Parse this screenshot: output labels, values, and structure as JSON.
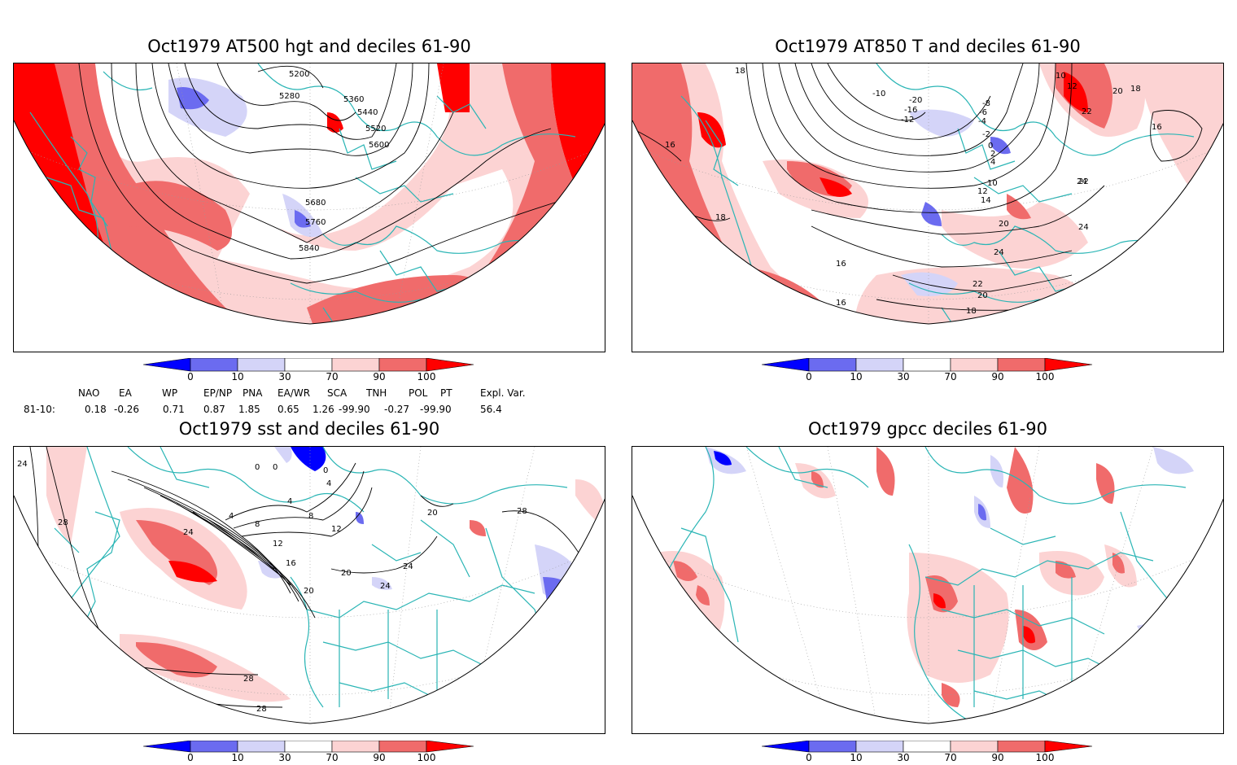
{
  "panels": [
    {
      "title": "Oct1979 AT500 hgt and deciles 61-90",
      "contour_labels": [
        "5200",
        "5280",
        "5360",
        "5440",
        "5520",
        "5600",
        "5680",
        "5760",
        "5840"
      ]
    },
    {
      "title": "Oct1979 AT850 T and deciles 61-90",
      "contour_labels": [
        "18",
        "16",
        "18",
        "-10",
        "-20",
        "-16",
        "-12",
        "-8",
        "-6",
        "-4",
        "-2",
        "0",
        "2",
        "4",
        "10",
        "12",
        "14",
        "20",
        "22",
        "24",
        "24",
        "22",
        "20",
        "18",
        "16",
        "16",
        "10",
        "12",
        "20",
        "22",
        "18",
        "16",
        "24"
      ]
    },
    {
      "title": "Oct1979 sst and deciles 61-90",
      "contour_labels": [
        "24",
        "28",
        "0",
        "0",
        "0",
        "4",
        "4",
        "8",
        "4",
        "8",
        "12",
        "16",
        "20",
        "20",
        "24",
        "24",
        "28",
        "28",
        "28",
        "24",
        "12",
        "20"
      ]
    },
    {
      "title": "Oct1979 gpcc deciles 61-90",
      "contour_labels": []
    }
  ],
  "colorbar": {
    "ticks": [
      "0",
      "10",
      "30",
      "70",
      "90",
      "100"
    ],
    "colors": [
      "#0000ff",
      "#6b6bf0",
      "#d4d4f8",
      "#ffffff",
      "#fcd3d3",
      "#f06b6b",
      "#ff0000"
    ]
  },
  "teleconnections": {
    "headers": [
      "NAO",
      "EA",
      "WP",
      "EP/NP",
      "PNA",
      "EA/WR",
      "SCA",
      "TNH",
      "POL",
      "PT",
      "Expl. Var."
    ],
    "row_label": "81-10:",
    "values": [
      "0.18",
      "-0.26",
      "0.71",
      "0.87",
      "1.85",
      "0.65",
      "1.26",
      "-99.90",
      "-0.27",
      "-99.90",
      "56.4"
    ]
  },
  "colors": {
    "coast": "#2ab5b5",
    "strong_pos": "#ff0000",
    "mid_pos": "#f06b6b",
    "light_pos": "#fcd3d3",
    "light_neg": "#d4d4f8",
    "mid_neg": "#6b6bf0",
    "strong_neg": "#0000ff"
  }
}
